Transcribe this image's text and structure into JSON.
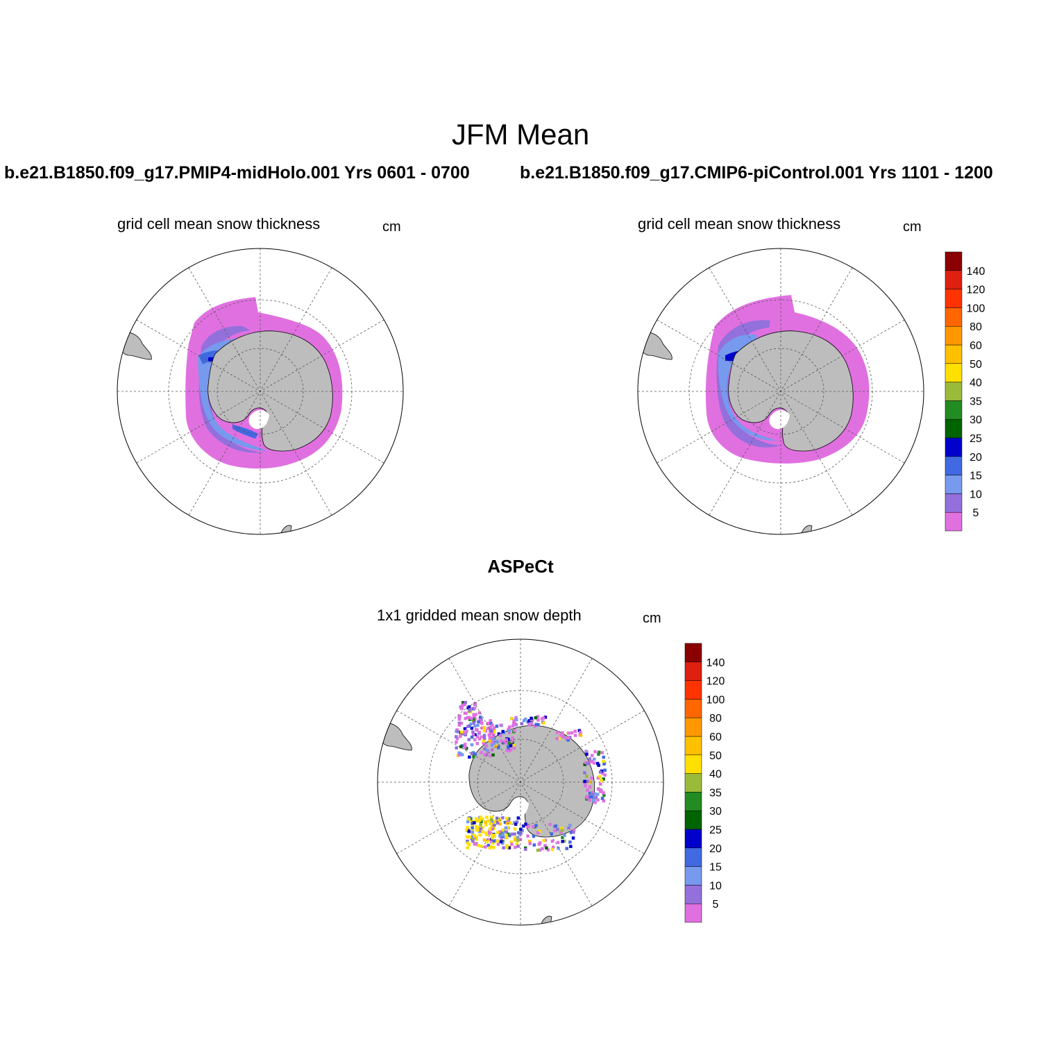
{
  "figure": {
    "title": "JFM Mean",
    "case_left": "b.e21.B1850.f09_g17.PMIP4-midHolo.001  Yrs 0601 - 0700",
    "case_right": "b.e21.B1850.f09_g17.CMIP6-piControl.001  Yrs 1101 - 1200",
    "obs_title": "ASPeCt"
  },
  "panels": [
    {
      "title": "grid cell mean snow thickness",
      "units": "cm"
    },
    {
      "title": "grid cell mean snow thickness",
      "units": "cm"
    },
    {
      "title": "1x1 gridded mean snow depth",
      "units": "cm"
    }
  ],
  "colorbar": {
    "levels": [
      "5",
      "10",
      "15",
      "20",
      "25",
      "30",
      "35",
      "40",
      "50",
      "60",
      "80",
      "100",
      "120",
      "140"
    ],
    "colors": [
      "#e070e0",
      "#9370db",
      "#7799ee",
      "#4169e1",
      "#0000cd",
      "#006400",
      "#228b22",
      "#9aba3a",
      "#ffe000",
      "#ffc000",
      "#ff9800",
      "#ff6600",
      "#ff3300",
      "#dd2010",
      "#8b0000"
    ]
  },
  "map": {
    "projection": "south-polar-stereographic",
    "land_color": "#bdbdbd",
    "ocean_color": "#ffffff"
  }
}
